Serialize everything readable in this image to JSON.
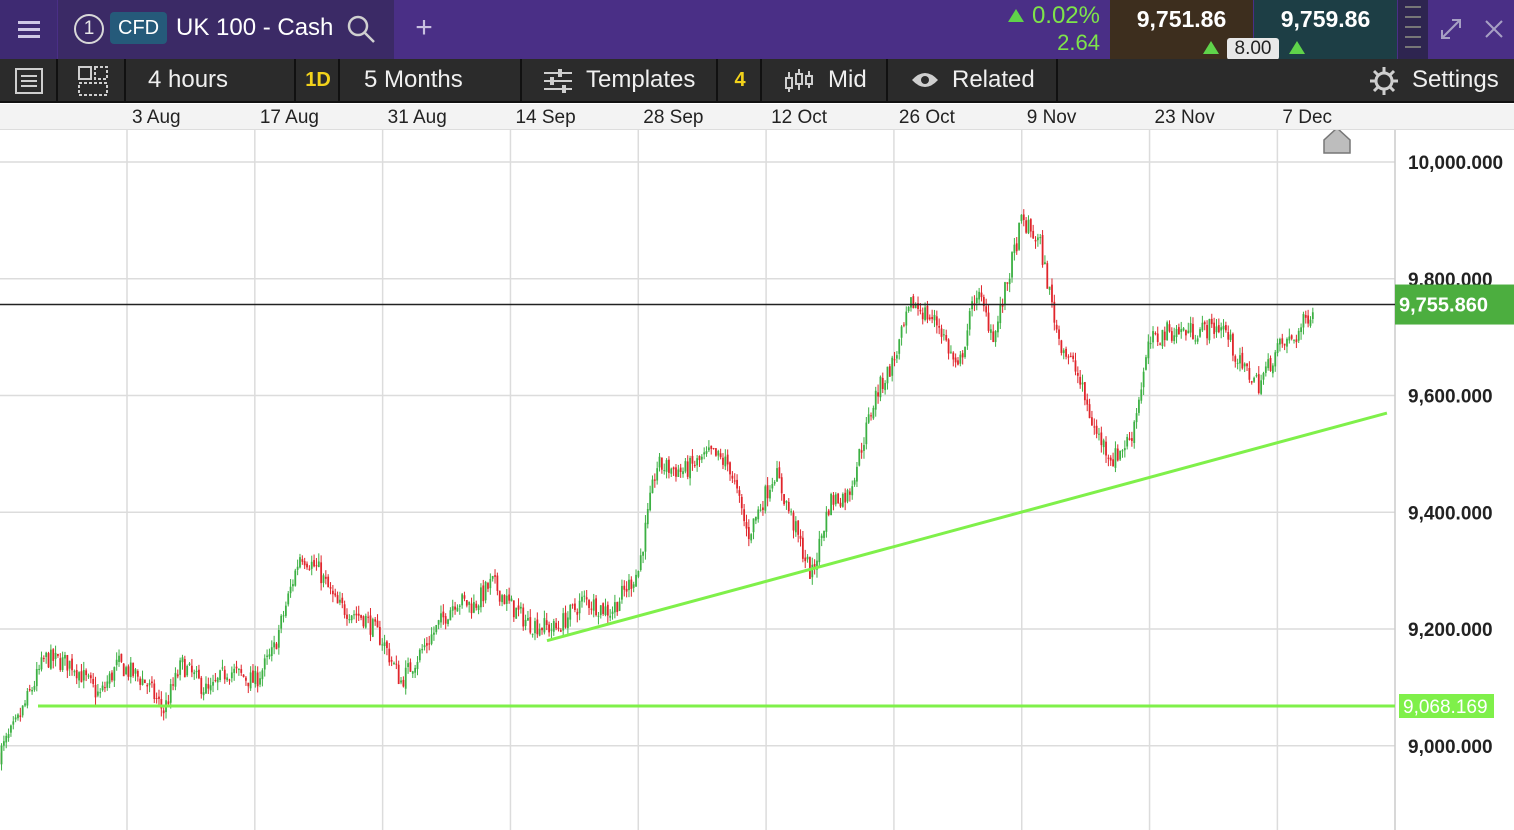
{
  "instrument": {
    "tab_number": "1",
    "type_badge": "CFD",
    "name": "UK 100 - Cash",
    "change_pct": "0.02%",
    "change_abs": "2.64",
    "sell_price": "9,751.86",
    "buy_price": "9,759.86",
    "spread": "8.00"
  },
  "toolbar": {
    "interval": "4 hours",
    "chart_period_badge": "1D",
    "range": "5 Months",
    "templates_label": "Templates",
    "templates_count": "4",
    "price_type": "Mid",
    "related_label": "Related",
    "settings_label": "Settings"
  },
  "colors": {
    "up_candle": "#3cb043",
    "down_candle": "#e0252b",
    "trendline": "#7ff04a",
    "current_price_tag": "#4cae3f"
  },
  "chart_data": {
    "type": "candlestick",
    "x_tick_labels": [
      "3 Aug",
      "17 Aug",
      "31 Aug",
      "14 Sep",
      "28 Sep",
      "12 Oct",
      "26 Oct",
      "9 Nov",
      "23 Nov",
      "7 Dec"
    ],
    "y_tick_labels": [
      "10,000.000",
      "9,800.000",
      "9,600.000",
      "9,400.000",
      "9,200.000",
      "9,000.000"
    ],
    "y_ticks": [
      10000,
      9800,
      9600,
      9400,
      9200,
      9000
    ],
    "ylim": [
      8830,
      10050
    ],
    "current_price": 9755.86,
    "current_price_label": "9,755.860",
    "horizontal_line": 9068.169,
    "horizontal_line_label": "9,068.169",
    "trendlines": [
      {
        "from": [
          "18 Sep",
          9180
        ],
        "to": [
          "19 Dec",
          9570
        ]
      }
    ],
    "close_path": [
      [
        "20 Jul",
        8985
      ],
      [
        "22 Jul",
        9040
      ],
      [
        "25 Jul",
        9150
      ],
      [
        "28 Jul",
        9140
      ],
      [
        "31 Jul",
        9085
      ],
      [
        "2 Aug",
        9140
      ],
      [
        "5 Aug",
        9110
      ],
      [
        "7 Aug",
        9060
      ],
      [
        "9 Aug",
        9140
      ],
      [
        "12 Aug",
        9090
      ],
      [
        "14 Aug",
        9130
      ],
      [
        "17 Aug",
        9110
      ],
      [
        "19 Aug",
        9160
      ],
      [
        "22 Aug",
        9330
      ],
      [
        "24 Aug",
        9300
      ],
      [
        "26 Aug",
        9240
      ],
      [
        "29 Aug",
        9220
      ],
      [
        "31 Aug",
        9180
      ],
      [
        "2 Sep",
        9110
      ],
      [
        "5 Sep",
        9180
      ],
      [
        "8 Sep",
        9250
      ],
      [
        "10 Sep",
        9240
      ],
      [
        "12 Sep",
        9280
      ],
      [
        "14 Sep",
        9240
      ],
      [
        "16 Sep",
        9210
      ],
      [
        "19 Sep",
        9200
      ],
      [
        "22 Sep",
        9250
      ],
      [
        "25 Sep",
        9230
      ],
      [
        "28 Sep",
        9300
      ],
      [
        "30 Sep",
        9480
      ],
      [
        "3 Oct",
        9470
      ],
      [
        "6 Oct",
        9500
      ],
      [
        "8 Oct",
        9480
      ],
      [
        "10 Oct",
        9360
      ],
      [
        "13 Oct",
        9470
      ],
      [
        "15 Oct",
        9380
      ],
      [
        "17 Oct",
        9290
      ],
      [
        "19 Oct",
        9420
      ],
      [
        "21 Oct",
        9430
      ],
      [
        "24 Oct",
        9600
      ],
      [
        "26 Oct",
        9660
      ],
      [
        "28 Oct",
        9760
      ],
      [
        "31 Oct",
        9720
      ],
      [
        "2 Nov",
        9640
      ],
      [
        "4 Nov",
        9780
      ],
      [
        "6 Nov",
        9700
      ],
      [
        "9 Nov",
        9900
      ],
      [
        "11 Nov",
        9860
      ],
      [
        "13 Nov",
        9700
      ],
      [
        "15 Nov",
        9640
      ],
      [
        "17 Nov",
        9540
      ],
      [
        "19 Nov",
        9490
      ],
      [
        "21 Nov",
        9530
      ],
      [
        "23 Nov",
        9690
      ],
      [
        "25 Nov",
        9710
      ],
      [
        "28 Nov",
        9710
      ],
      [
        "1 Dec",
        9720
      ],
      [
        "3 Dec",
        9650
      ],
      [
        "5 Dec",
        9620
      ],
      [
        "7 Dec",
        9680
      ],
      [
        "9 Dec",
        9700
      ],
      [
        "11 Dec",
        9755
      ]
    ]
  }
}
